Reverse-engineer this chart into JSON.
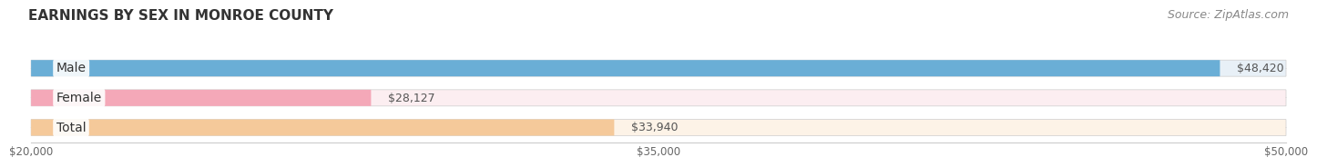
{
  "title": "EARNINGS BY SEX IN MONROE COUNTY",
  "source": "Source: ZipAtlas.com",
  "categories": [
    "Male",
    "Female",
    "Total"
  ],
  "values": [
    48420,
    28127,
    33940
  ],
  "bar_colors": [
    "#6aaed6",
    "#f4a8b8",
    "#f5c99a"
  ],
  "bar_bg_colors": [
    "#e8f0f7",
    "#fceef1",
    "#fdf3e7"
  ],
  "xmin": 20000,
  "xmax": 50000,
  "xticks": [
    20000,
    35000,
    50000
  ],
  "xtick_labels": [
    "$20,000",
    "$35,000",
    "$50,000"
  ],
  "title_fontsize": 11,
  "source_fontsize": 9,
  "label_fontsize": 10,
  "value_fontsize": 9,
  "background_color": "#ffffff"
}
